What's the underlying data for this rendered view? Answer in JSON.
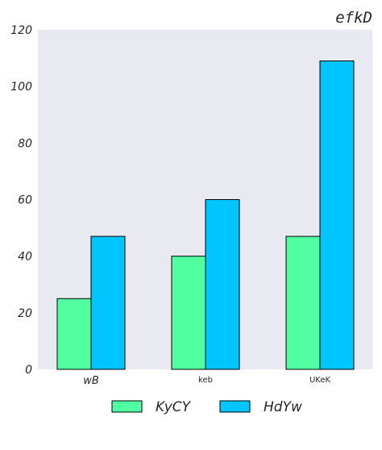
{
  "chart_data": {
    "type": "bar",
    "title": "efkD",
    "xlabel": "",
    "ylabel": "",
    "categories": [
      "wB",
      "keb",
      "UKeK"
    ],
    "series": [
      {
        "name": "KyCY",
        "values": [
          25,
          40,
          47
        ],
        "color": "#52ffa0"
      },
      {
        "name": "HdYw",
        "values": [
          47,
          60,
          109
        ],
        "color": "#00c5ff"
      }
    ],
    "ylim": [
      0,
      120
    ],
    "yticks": [
      0,
      20,
      40,
      60,
      80,
      100,
      120
    ],
    "grid": false,
    "plot_background": "#e9e9f1",
    "bar_edge_color": "#000000",
    "legend_position": "bottom-center"
  }
}
